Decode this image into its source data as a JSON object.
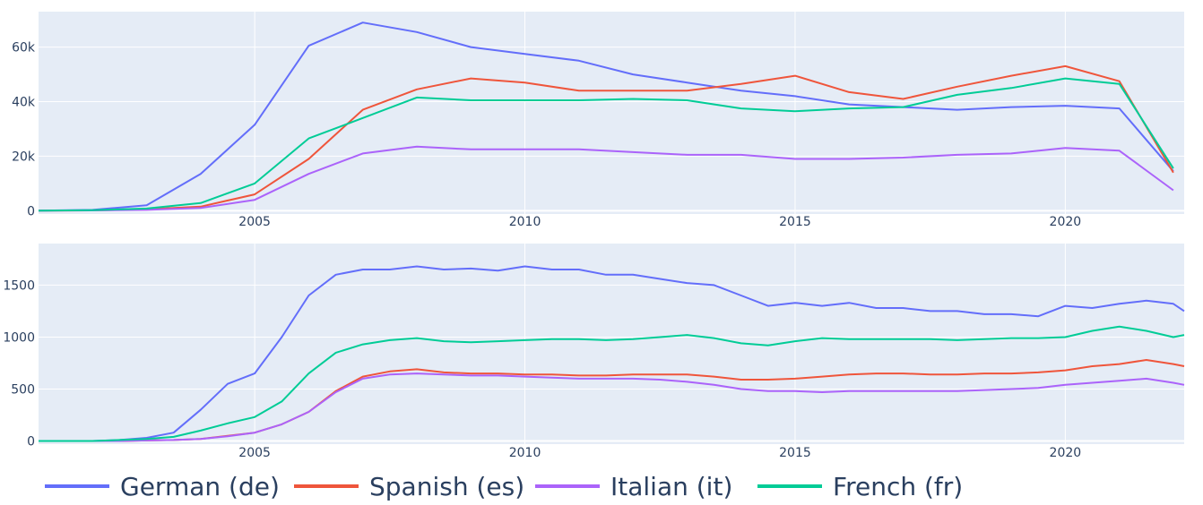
{
  "legend": [
    {
      "name": "German (de)",
      "color": "#636efa"
    },
    {
      "name": "Spanish (es)",
      "color": "#ef553b"
    },
    {
      "name": "Italian (it)",
      "color": "#ab63fa"
    },
    {
      "name": "French (fr)",
      "color": "#00cc96"
    }
  ],
  "chart_data": [
    {
      "type": "line",
      "title": "",
      "xlabel": "",
      "ylabel": "",
      "xlim": [
        2001,
        2022.2
      ],
      "ylim": [
        -1200,
        73000
      ],
      "xticks": [
        2005,
        2010,
        2015,
        2020
      ],
      "xtick_labels": [
        "2005",
        "2010",
        "2015",
        "2020"
      ],
      "yticks": [
        0,
        20000,
        40000,
        60000
      ],
      "ytick_labels": [
        "0",
        "20k",
        "40k",
        "60k"
      ],
      "grid": true,
      "x": [
        2001,
        2002,
        2003,
        2004,
        2005,
        2006,
        2007,
        2008,
        2009,
        2010,
        2011,
        2012,
        2013,
        2014,
        2015,
        2016,
        2017,
        2018,
        2019,
        2020,
        2021,
        2022
      ],
      "series": [
        {
          "name": "German (de)",
          "color": "#636efa",
          "values": [
            0,
            300,
            2000,
            13500,
            31500,
            60500,
            69000,
            65500,
            60000,
            57500,
            55000,
            50000,
            47000,
            44000,
            42000,
            39000,
            38000,
            37000,
            38000,
            38500,
            37500,
            14500
          ]
        },
        {
          "name": "Spanish (es)",
          "color": "#ef553b",
          "values": [
            0,
            100,
            500,
            1500,
            6000,
            19000,
            37000,
            44500,
            48500,
            47000,
            44000,
            44000,
            44000,
            46500,
            49500,
            43500,
            41000,
            45500,
            49500,
            53000,
            47500,
            14000
          ]
        },
        {
          "name": "Italian (it)",
          "color": "#ab63fa",
          "values": [
            0,
            100,
            300,
            1000,
            4000,
            13500,
            21000,
            23500,
            22500,
            22500,
            22500,
            21500,
            20500,
            20500,
            19000,
            19000,
            19500,
            20500,
            21000,
            23000,
            22000,
            7500
          ]
        },
        {
          "name": "French (fr)",
          "color": "#00cc96",
          "values": [
            0,
            200,
            800,
            2800,
            10000,
            26500,
            34000,
            41500,
            40500,
            40500,
            40500,
            41000,
            40500,
            37500,
            36500,
            37500,
            38000,
            42500,
            45000,
            48500,
            46500,
            15500
          ]
        }
      ]
    },
    {
      "type": "line",
      "title": "",
      "xlabel": "",
      "ylabel": "",
      "xlim": [
        2001,
        2022.2
      ],
      "ylim": [
        -30,
        1900
      ],
      "xticks": [
        2005,
        2010,
        2015,
        2020
      ],
      "xtick_labels": [
        "2005",
        "2010",
        "2015",
        "2020"
      ],
      "yticks": [
        0,
        500,
        1000,
        1500
      ],
      "ytick_labels": [
        "0",
        "500",
        "1000",
        "1500"
      ],
      "grid": true,
      "x": [
        2001,
        2002,
        2002.5,
        2003,
        2003.5,
        2004,
        2004.5,
        2005,
        2005.5,
        2006,
        2006.5,
        2007,
        2007.5,
        2008,
        2008.5,
        2009,
        2009.5,
        2010,
        2010.5,
        2011,
        2011.5,
        2012,
        2012.5,
        2013,
        2013.5,
        2014,
        2014.5,
        2015,
        2015.5,
        2016,
        2016.5,
        2017,
        2017.5,
        2018,
        2018.5,
        2019,
        2019.5,
        2020,
        2020.5,
        2021,
        2021.5,
        2022,
        2022.2
      ],
      "series": [
        {
          "name": "German (de)",
          "color": "#636efa",
          "values": [
            0,
            0,
            10,
            30,
            80,
            300,
            550,
            650,
            1000,
            1400,
            1600,
            1650,
            1650,
            1680,
            1650,
            1660,
            1640,
            1680,
            1650,
            1650,
            1600,
            1600,
            1560,
            1520,
            1500,
            1400,
            1300,
            1330,
            1300,
            1330,
            1280,
            1280,
            1250,
            1250,
            1220,
            1220,
            1200,
            1300,
            1280,
            1320,
            1350,
            1320,
            1250
          ]
        },
        {
          "name": "Spanish (es)",
          "color": "#ef553b",
          "values": [
            0,
            0,
            0,
            5,
            10,
            20,
            50,
            80,
            160,
            280,
            480,
            620,
            670,
            690,
            660,
            650,
            650,
            640,
            640,
            630,
            630,
            640,
            640,
            640,
            620,
            590,
            590,
            600,
            620,
            640,
            650,
            650,
            640,
            640,
            650,
            650,
            660,
            680,
            720,
            740,
            780,
            740,
            720
          ]
        },
        {
          "name": "Italian (it)",
          "color": "#ab63fa",
          "values": [
            0,
            0,
            0,
            5,
            10,
            20,
            45,
            80,
            160,
            280,
            470,
            600,
            640,
            650,
            640,
            630,
            630,
            620,
            610,
            600,
            600,
            600,
            590,
            570,
            540,
            500,
            480,
            480,
            470,
            480,
            480,
            480,
            480,
            480,
            490,
            500,
            510,
            540,
            560,
            580,
            600,
            560,
            540
          ]
        },
        {
          "name": "French (fr)",
          "color": "#00cc96",
          "values": [
            0,
            0,
            10,
            20,
            40,
            100,
            170,
            230,
            380,
            650,
            850,
            930,
            970,
            990,
            960,
            950,
            960,
            970,
            980,
            980,
            970,
            980,
            1000,
            1020,
            990,
            940,
            920,
            960,
            990,
            980,
            980,
            980,
            980,
            970,
            980,
            990,
            990,
            1000,
            1060,
            1100,
            1060,
            1000,
            1020
          ]
        }
      ]
    }
  ]
}
